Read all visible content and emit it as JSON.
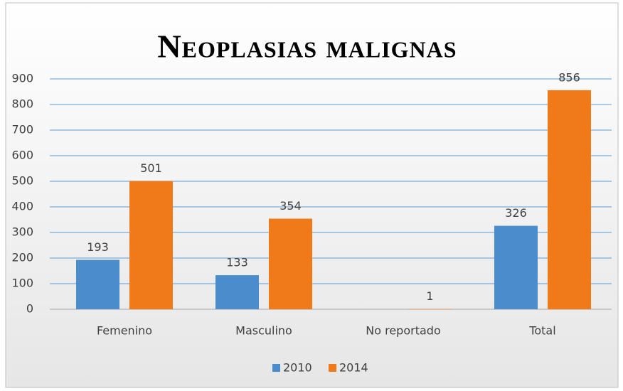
{
  "chart_data": {
    "type": "bar",
    "title": "Neoplasias malignas",
    "categories": [
      "Femenino",
      "Masculino",
      "No reportado",
      "Total"
    ],
    "series": [
      {
        "name": "2010",
        "color": "#4a8ccc",
        "values": [
          193,
          133,
          null,
          326
        ]
      },
      {
        "name": "2014",
        "color": "#f07a1a",
        "values": [
          501,
          354,
          1,
          856
        ]
      }
    ],
    "ylim": [
      0,
      900
    ],
    "yticks": [
      0,
      100,
      200,
      300,
      400,
      500,
      600,
      700,
      800,
      900
    ],
    "grid": true,
    "legend": "bottom"
  }
}
